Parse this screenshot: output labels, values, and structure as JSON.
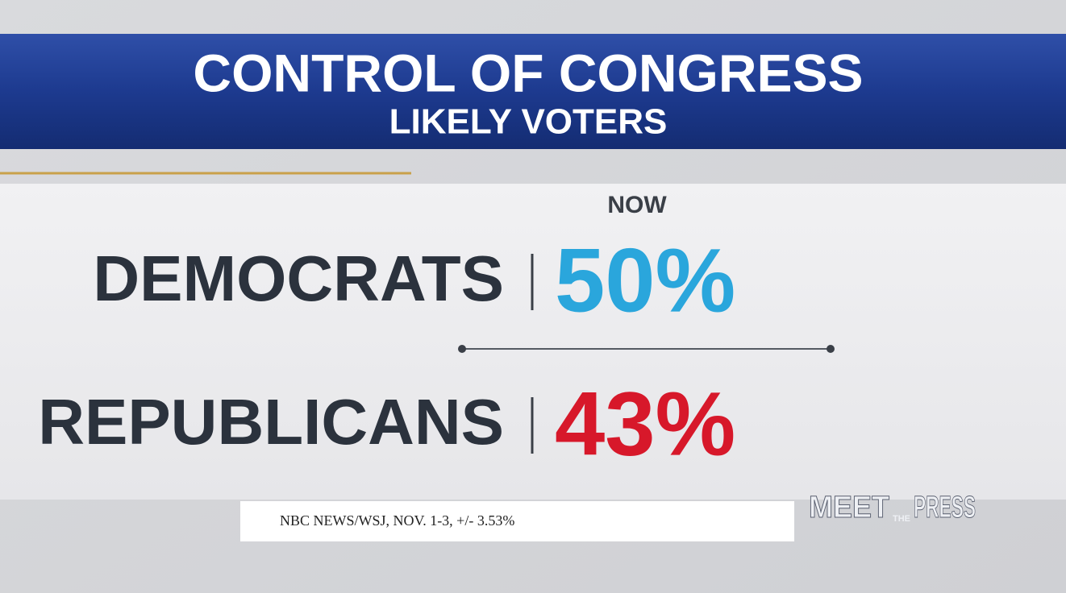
{
  "header": {
    "title": "CONTROL OF CONGRESS",
    "subtitle": "LIKELY VOTERS"
  },
  "column_header": "NOW",
  "rows": [
    {
      "label": "DEMOCRATS",
      "value": "50%"
    },
    {
      "label": "REPUBLICANS",
      "value": "43%"
    }
  ],
  "source": "NBC NEWS/WSJ, NOV. 1-3, +/- 3.53%",
  "logo": {
    "left": "MEET",
    "middle": "THE",
    "right": "PRESS"
  }
}
